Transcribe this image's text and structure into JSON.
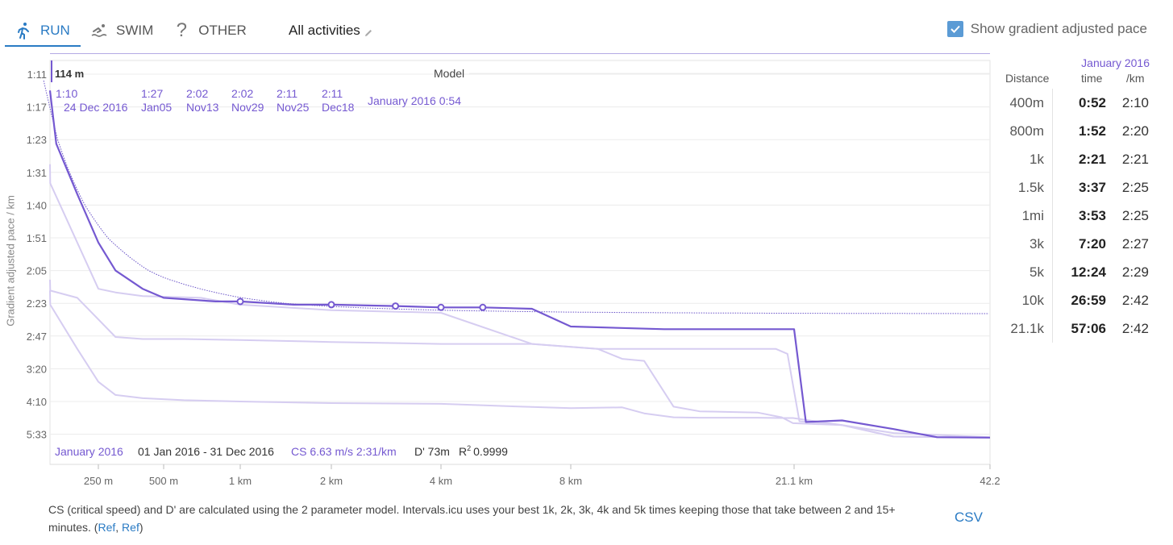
{
  "tabs": [
    {
      "label": "RUN",
      "icon": "runner-icon",
      "active": true
    },
    {
      "label": "SWIM",
      "icon": "swimmer-icon",
      "active": false
    },
    {
      "label": "OTHER",
      "icon": "question-icon",
      "active": false
    }
  ],
  "activities": {
    "label": "All activities",
    "icon": "pencil-icon"
  },
  "gradient_toggle": {
    "label": "Show gradient adjusted pace",
    "checked": true
  },
  "chart": {
    "ylabel": "Gradient adjusted pace / km",
    "y_ticks": [
      "1:11",
      "1:17",
      "1:23",
      "1:31",
      "1:40",
      "1:51",
      "2:05",
      "2:23",
      "2:47",
      "3:20",
      "4:10",
      "5:33"
    ],
    "x_ticks": [
      "250 m",
      "500 m",
      "1 km",
      "2 km",
      "4 km",
      "8 km",
      "21.1 km",
      "42.2"
    ],
    "cursor_label": "114 m",
    "model_label": "Model",
    "bests": [
      {
        "pace": "1:10",
        "date": "24 Dec 2016"
      },
      {
        "pace": "1:27",
        "date": "Jan05"
      },
      {
        "pace": "2:02",
        "date": "Nov13"
      },
      {
        "pace": "2:02",
        "date": "Nov29"
      },
      {
        "pace": "2:11",
        "date": "Nov25"
      },
      {
        "pace": "2:11",
        "date": "Dec18"
      }
    ],
    "current": {
      "period": "January 2016",
      "pace": "0:54"
    },
    "footer": {
      "period": "January 2016",
      "range": "01 Jan 2016 - 31 Dec 2016",
      "cs": "CS 6.63 m/s 2:31/km",
      "dprime": "D' 73m",
      "r2_label": "R",
      "r2_sup": "2",
      "r2_value": "0.9999"
    },
    "colors": {
      "main": "#7559d1",
      "faint": "#d6cdf1",
      "model": "#6a54c8",
      "grid": "#ececec"
    }
  },
  "chart_data": {
    "type": "line",
    "title": "",
    "xlabel": "",
    "ylabel": "Gradient adjusted pace / km",
    "x_scale": "log",
    "x_ticks_m": [
      250,
      500,
      1000,
      2000,
      4000,
      8000,
      21100,
      42200
    ],
    "series": [
      {
        "name": "January 2016",
        "x": [
          120,
          160,
          200,
          250,
          300,
          400,
          500,
          800,
          1000,
          1500,
          2000,
          3000,
          4000,
          5000,
          6500,
          8000,
          12000,
          18000,
          21100,
          22000,
          25000,
          30000,
          35000,
          42200
        ],
        "y": [
          "1:14",
          "1:24",
          "1:37",
          "1:53",
          "2:05",
          "2:15",
          "2:20",
          "2:22",
          "2:22",
          "2:24",
          "2:24",
          "2:25",
          "2:26",
          "2:26",
          "2:27",
          "2:40",
          "2:42",
          "2:42",
          "2:42",
          "5:02",
          "4:58",
          "5:20",
          "5:48",
          "5:50"
        ]
      },
      {
        "name": "",
        "x": [
          120,
          150,
          200,
          300,
          400,
          600,
          1000,
          2000,
          4000,
          6500,
          9000,
          13000,
          16000,
          18000,
          19500,
          20500,
          21500,
          25000,
          30000,
          42200
        ],
        "y": [
          "2:10",
          "2:16",
          "2:20",
          "2:48",
          "2:50",
          "2:50",
          "2:51",
          "2:53",
          "2:55",
          "2:55",
          "3:00",
          "3:00",
          "3:00",
          "3:00",
          "3:00",
          "3:05",
          "5:00",
          "5:10",
          "5:30",
          "5:48"
        ]
      },
      {
        "name": "",
        "x": [
          120,
          150,
          200,
          250,
          300,
          400,
          600,
          1000,
          2000,
          4000,
          6500,
          8000,
          10000,
          11000,
          12500,
          14000,
          18000,
          20000,
          21000,
          25000,
          30000,
          42200
        ],
        "y": [
          "2:16",
          "2:24",
          "3:00",
          "3:40",
          "4:00",
          "4:05",
          "4:08",
          "4:10",
          "4:14",
          "4:16",
          "4:24",
          "4:27",
          "4:25",
          "4:40",
          "4:50",
          "4:51",
          "4:51",
          "4:52",
          "4:52",
          "5:10",
          "5:45",
          "5:50"
        ]
      },
      {
        "name": "",
        "x": [
          120,
          150,
          250,
          300,
          400,
          700,
          1000,
          2000,
          4000,
          6500,
          9000,
          10000,
          11000,
          12500,
          14000,
          18000,
          20000,
          21000,
          25000,
          30000,
          42200
        ],
        "y": [
          "1:29",
          "1:34",
          "2:15",
          "2:17",
          "2:19",
          "2:20",
          "2:24",
          "2:28",
          "2:30",
          "2:55",
          "3:00",
          "3:10",
          "3:12",
          "4:23",
          "4:35",
          "4:38",
          "4:50",
          "5:05",
          "5:10",
          "5:45",
          "5:50"
        ]
      }
    ],
    "model": {
      "cs_m_per_s": 6.63,
      "cs_pace": "2:31/km",
      "d_prime_m": 73,
      "r2": 0.9999
    },
    "best_efforts": [
      {
        "distance": "400m",
        "time": "0:52",
        "pace": "2:10"
      },
      {
        "distance": "800m",
        "time": "1:52",
        "pace": "2:20"
      },
      {
        "distance": "1k",
        "time": "2:21",
        "pace": "2:21"
      },
      {
        "distance": "1.5k",
        "time": "3:37",
        "pace": "2:25"
      },
      {
        "distance": "1mi",
        "time": "3:53",
        "pace": "2:25"
      },
      {
        "distance": "3k",
        "time": "7:20",
        "pace": "2:27"
      },
      {
        "distance": "5k",
        "time": "12:24",
        "pace": "2:29"
      },
      {
        "distance": "10k",
        "time": "26:59",
        "pace": "2:42"
      },
      {
        "distance": "21.1k",
        "time": "57:06",
        "pace": "2:42"
      }
    ]
  },
  "best_table": {
    "period": "January 2016",
    "col_distance": "Distance",
    "col_time": "time",
    "col_pace": "/km",
    "rows": [
      {
        "distance": "400m",
        "time": "0:52",
        "pace": "2:10"
      },
      {
        "distance": "800m",
        "time": "1:52",
        "pace": "2:20"
      },
      {
        "distance": "1k",
        "time": "2:21",
        "pace": "2:21"
      },
      {
        "distance": "1.5k",
        "time": "3:37",
        "pace": "2:25"
      },
      {
        "distance": "1mi",
        "time": "3:53",
        "pace": "2:25"
      },
      {
        "distance": "3k",
        "time": "7:20",
        "pace": "2:27"
      },
      {
        "distance": "5k",
        "time": "12:24",
        "pace": "2:29"
      },
      {
        "distance": "10k",
        "time": "26:59",
        "pace": "2:42"
      },
      {
        "distance": "21.1k",
        "time": "57:06",
        "pace": "2:42"
      }
    ]
  },
  "footnote": {
    "text": "CS (critical speed) and D' are calculated using the 2 parameter model. Intervals.icu uses your best 1k, 2k, 3k, 4k and 5k times keeping those that take between 2 and 15+ minutes. (",
    "ref1": "Ref",
    "sep": ", ",
    "ref2": "Ref",
    "close": ")"
  },
  "csv_label": "CSV"
}
